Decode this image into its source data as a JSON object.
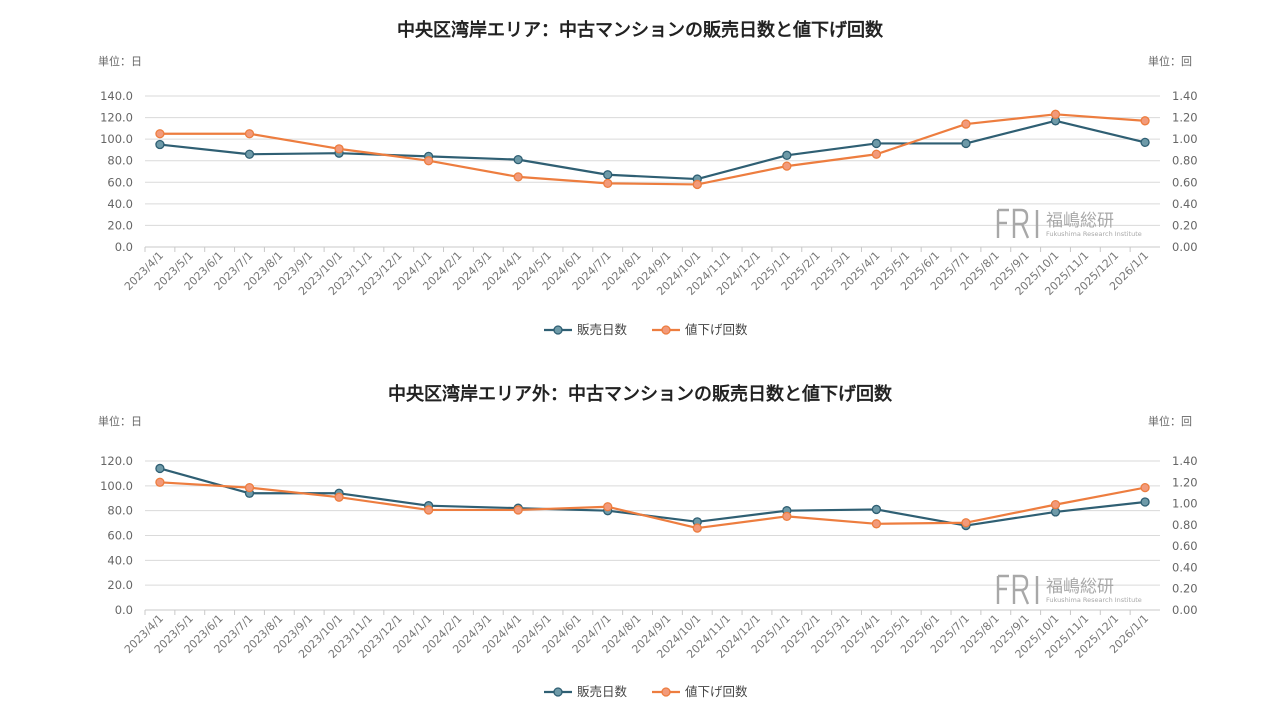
{
  "chart_data": [
    {
      "type": "line",
      "title": "中央区湾岸エリア：中古マンションの販売日数と値下げ回数",
      "left_unit": "単位：日",
      "right_unit": "単位：回",
      "categories": [
        "2023/4/1",
        "2023/5/1",
        "2023/6/1",
        "2023/7/1",
        "2023/8/1",
        "2023/9/1",
        "2023/10/1",
        "2023/11/1",
        "2023/12/1",
        "2024/1/1",
        "2024/2/1",
        "2024/3/1",
        "2024/4/1",
        "2024/5/1",
        "2024/6/1",
        "2024/7/1",
        "2024/8/1",
        "2024/9/1",
        "2024/10/1",
        "2024/11/1",
        "2024/12/1",
        "2025/1/1",
        "2025/2/1",
        "2025/3/1",
        "2025/4/1",
        "2025/5/1",
        "2025/6/1",
        "2025/7/1",
        "2025/8/1",
        "2025/9/1",
        "2025/10/1",
        "2025/11/1",
        "2025/12/1",
        "2026/1/1"
      ],
      "y_left": {
        "min": 0,
        "max": 140,
        "ticks": [
          "0.0",
          "20.0",
          "40.0",
          "60.0",
          "80.0",
          "100.0",
          "120.0",
          "140.0"
        ]
      },
      "y_right": {
        "min": 0,
        "max": 1.4,
        "ticks": [
          "0.00",
          "0.20",
          "0.40",
          "0.60",
          "0.80",
          "1.00",
          "1.20",
          "1.40"
        ]
      },
      "series": [
        {
          "name": "販売日数",
          "axis": "left",
          "color": "#2f5f73",
          "points": [
            [
              0,
              95
            ],
            [
              3,
              86
            ],
            [
              6,
              87
            ],
            [
              9,
              84
            ],
            [
              12,
              81
            ],
            [
              15,
              67
            ],
            [
              18,
              63
            ],
            [
              21,
              85
            ],
            [
              24,
              96
            ],
            [
              27,
              96
            ],
            [
              30,
              117
            ],
            [
              33,
              97
            ]
          ]
        },
        {
          "name": "値下げ回数",
          "axis": "right",
          "color": "#ed7d3f",
          "points": [
            [
              0,
              1.05
            ],
            [
              3,
              1.05
            ],
            [
              6,
              0.91
            ],
            [
              9,
              0.8
            ],
            [
              12,
              0.65
            ],
            [
              15,
              0.59
            ],
            [
              18,
              0.58
            ],
            [
              21,
              0.75
            ],
            [
              24,
              0.86
            ],
            [
              27,
              1.14
            ],
            [
              30,
              1.23
            ],
            [
              33,
              1.17
            ]
          ]
        }
      ]
    },
    {
      "type": "line",
      "title": "中央区湾岸エリア外：中古マンションの販売日数と値下げ回数",
      "left_unit": "単位：日",
      "right_unit": "単位：回",
      "categories": [
        "2023/4/1",
        "2023/5/1",
        "2023/6/1",
        "2023/7/1",
        "2023/8/1",
        "2023/9/1",
        "2023/10/1",
        "2023/11/1",
        "2023/12/1",
        "2024/1/1",
        "2024/2/1",
        "2024/3/1",
        "2024/4/1",
        "2024/5/1",
        "2024/6/1",
        "2024/7/1",
        "2024/8/1",
        "2024/9/1",
        "2024/10/1",
        "2024/11/1",
        "2024/12/1",
        "2025/1/1",
        "2025/2/1",
        "2025/3/1",
        "2025/4/1",
        "2025/5/1",
        "2025/6/1",
        "2025/7/1",
        "2025/8/1",
        "2025/9/1",
        "2025/10/1",
        "2025/11/1",
        "2025/12/1",
        "2026/1/1"
      ],
      "y_left": {
        "min": 0,
        "max": 120,
        "ticks": [
          "0.0",
          "20.0",
          "40.0",
          "60.0",
          "80.0",
          "100.0",
          "120.0"
        ]
      },
      "y_right": {
        "min": 0,
        "max": 1.4,
        "ticks": [
          "0.00",
          "0.20",
          "0.40",
          "0.60",
          "0.80",
          "1.00",
          "1.20",
          "1.40"
        ]
      },
      "series": [
        {
          "name": "販売日数",
          "axis": "left",
          "color": "#2f5f73",
          "points": [
            [
              0,
              114
            ],
            [
              3,
              94
            ],
            [
              6,
              94
            ],
            [
              9,
              84
            ],
            [
              12,
              82
            ],
            [
              15,
              80
            ],
            [
              18,
              71
            ],
            [
              21,
              80
            ],
            [
              24,
              81
            ],
            [
              27,
              68
            ],
            [
              30,
              79
            ],
            [
              33,
              87
            ]
          ]
        },
        {
          "name": "値下げ回数",
          "axis": "right",
          "color": "#ed7d3f",
          "points": [
            [
              0,
              1.2
            ],
            [
              3,
              1.15
            ],
            [
              6,
              1.06
            ],
            [
              9,
              0.94
            ],
            [
              12,
              0.94
            ],
            [
              15,
              0.97
            ],
            [
              18,
              0.77
            ],
            [
              21,
              0.88
            ],
            [
              24,
              0.81
            ],
            [
              27,
              0.82
            ],
            [
              30,
              0.99
            ],
            [
              33,
              1.15
            ]
          ]
        }
      ]
    }
  ],
  "logo": {
    "mark": "FRI",
    "name": "福嶋総研",
    "subtitle": "Fukushima Research Institute"
  }
}
